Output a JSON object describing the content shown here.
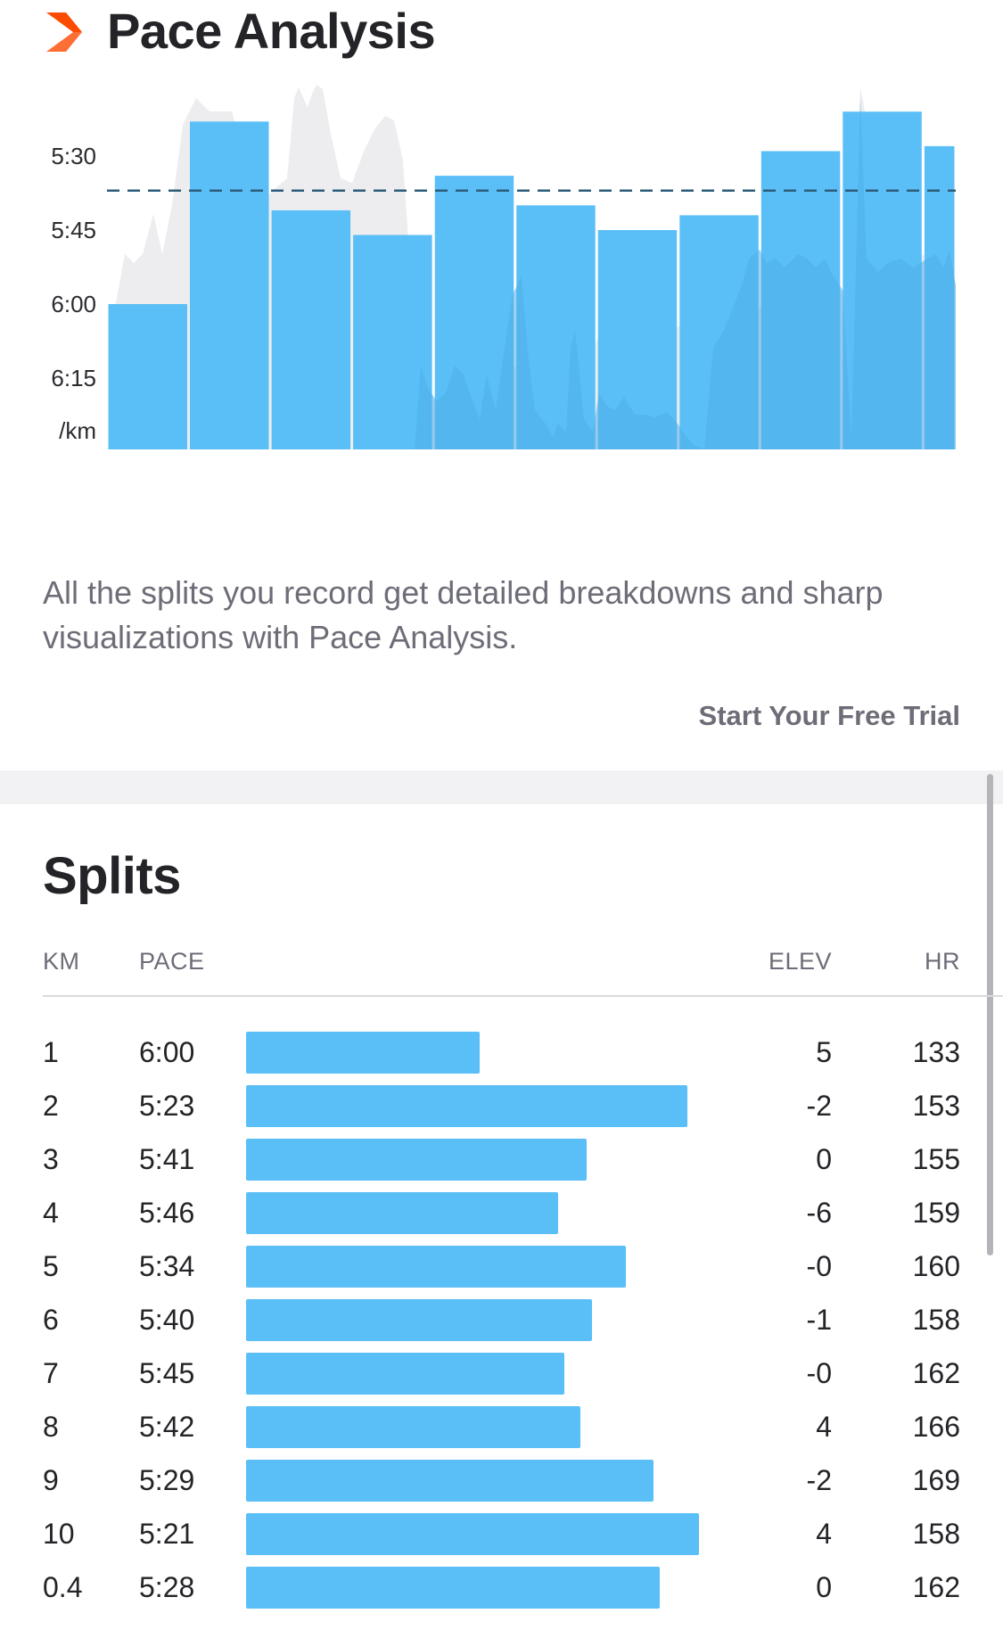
{
  "header": {
    "title": "Pace Analysis",
    "icon": "chevron-right-icon",
    "icon_color": "#FC4C02"
  },
  "chart_data": {
    "type": "bar",
    "title": "",
    "xlabel": "",
    "ylabel": "/km",
    "y_unit_label": "/km",
    "y_inverted": true,
    "yticks": [
      "5:30",
      "5:45",
      "6:00",
      "6:15"
    ],
    "average_line_pace": "5:37",
    "bar_color": "#5BBFF7",
    "background_area_color": "#EDEDF0",
    "categories": [
      "1",
      "2",
      "3",
      "4",
      "5",
      "6",
      "7",
      "8",
      "9",
      "10",
      "0.4"
    ],
    "values": [
      "6:00",
      "5:23",
      "5:41",
      "5:46",
      "5:34",
      "5:40",
      "5:45",
      "5:42",
      "5:29",
      "5:21",
      "5:28"
    ],
    "bar_width_distance_km": [
      1,
      1,
      1,
      1,
      1,
      1,
      1,
      1,
      1,
      1,
      0.4
    ]
  },
  "description": "All the splits you record get detailed breakdowns and sharp visualizations with Pace Analysis.",
  "cta": {
    "label": "Start Your Free Trial"
  },
  "splits": {
    "title": "Splits",
    "columns": {
      "km": "KM",
      "pace": "PACE",
      "elev": "ELEV",
      "hr": "HR"
    },
    "bar_color": "#5BBFF7",
    "rows": [
      {
        "km": "1",
        "pace": "6:00",
        "elev": "5",
        "hr": "133"
      },
      {
        "km": "2",
        "pace": "5:23",
        "elev": "-2",
        "hr": "153"
      },
      {
        "km": "3",
        "pace": "5:41",
        "elev": "0",
        "hr": "155"
      },
      {
        "km": "4",
        "pace": "5:46",
        "elev": "-6",
        "hr": "159"
      },
      {
        "km": "5",
        "pace": "5:34",
        "elev": "-0",
        "hr": "160"
      },
      {
        "km": "6",
        "pace": "5:40",
        "elev": "-1",
        "hr": "158"
      },
      {
        "km": "7",
        "pace": "5:45",
        "elev": "-0",
        "hr": "162"
      },
      {
        "km": "8",
        "pace": "5:42",
        "elev": "4",
        "hr": "166"
      },
      {
        "km": "9",
        "pace": "5:29",
        "elev": "-2",
        "hr": "169"
      },
      {
        "km": "10",
        "pace": "5:21",
        "elev": "4",
        "hr": "158"
      },
      {
        "km": "0.4",
        "pace": "5:28",
        "elev": "0",
        "hr": "162"
      }
    ]
  }
}
